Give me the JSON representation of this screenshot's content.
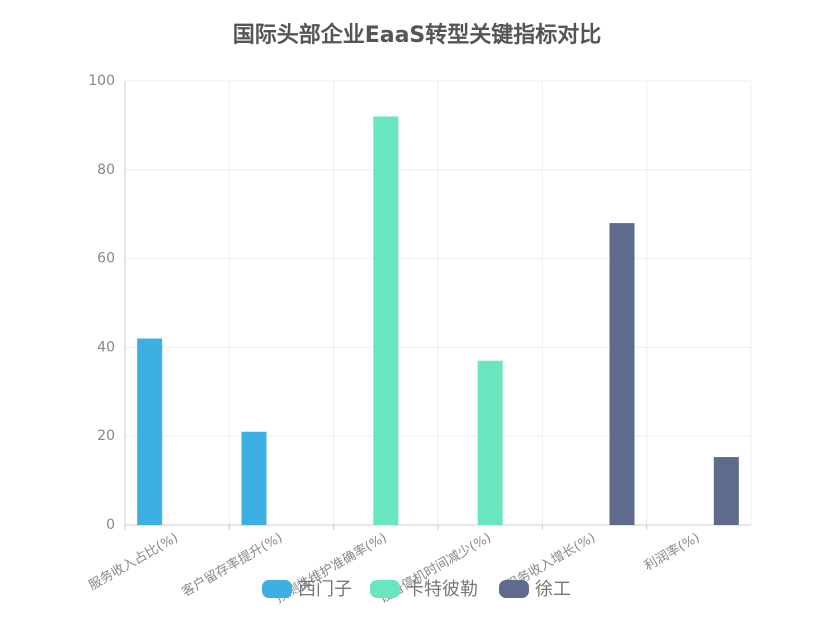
{
  "chart_data": {
    "type": "bar",
    "title": "国际头部企业EaaS转型关键指标对比",
    "categories": [
      "服务收入占比(%)",
      "客户留存率提升(%)",
      "预测性维护准确率(%)",
      "设备停机时间减少(%)",
      "服务收入增长(%)",
      "利润率(%)"
    ],
    "series": [
      {
        "name": "西门子",
        "color": "#3eafe2",
        "values": [
          42,
          21,
          null,
          null,
          null,
          null
        ]
      },
      {
        "name": "卡特彼勒",
        "color": "#69e5c0",
        "values": [
          null,
          null,
          92,
          37,
          null,
          null
        ]
      },
      {
        "name": "徐工",
        "color": "#5f6a8f",
        "values": [
          null,
          null,
          null,
          null,
          68,
          15.3
        ]
      }
    ],
    "ylim": [
      0,
      100
    ],
    "yticks": [
      0,
      20,
      40,
      60,
      80,
      100
    ],
    "grid": true,
    "legend": "bottom"
  }
}
